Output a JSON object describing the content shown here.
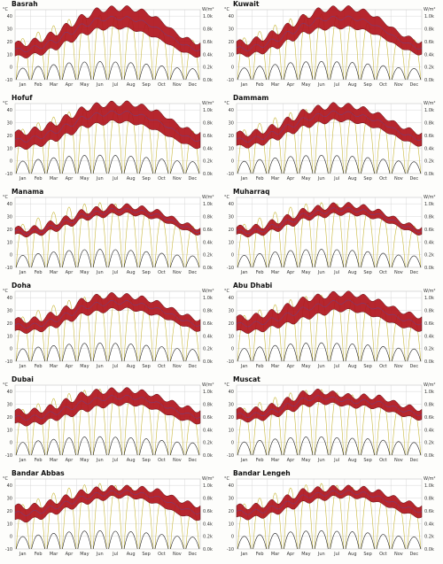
{
  "chart_data": {
    "type": "area",
    "months": [
      "Jan",
      "Feb",
      "Mar",
      "Apr",
      "May",
      "Jun",
      "Jul",
      "Aug",
      "Sep",
      "Oct",
      "Nov",
      "Dec"
    ],
    "temp_axis": {
      "unit": "°C",
      "ylim": [
        -10,
        45
      ],
      "ticks": [
        -10,
        0,
        10,
        20,
        30,
        40
      ]
    },
    "solar_axis": {
      "unit": "W/m²",
      "ylim": [
        0,
        1100
      ],
      "ticks": [
        "0.0k",
        "0.2k",
        "0.4k",
        "0.6k",
        "0.8k",
        "1.0k"
      ]
    },
    "colors": {
      "temp_band": "#b0141c",
      "temp_edge": "#5a0a0e",
      "mean_line": "#4a4cb0",
      "solar": "#c8b83c",
      "solar_low": "#222222",
      "grid": "#d8d8d8"
    },
    "cities": [
      {
        "name": "Basrah",
        "tmin": [
          8,
          10,
          14,
          20,
          26,
          30,
          31,
          30,
          26,
          21,
          14,
          9
        ],
        "tmax": [
          18,
          21,
          26,
          33,
          40,
          45,
          46,
          46,
          43,
          36,
          26,
          20
        ],
        "solar_peak": [
          650,
          750,
          850,
          950,
          1000,
          1020,
          1000,
          960,
          880,
          780,
          670,
          620
        ]
      },
      {
        "name": "Kuwait",
        "tmin": [
          9,
          11,
          15,
          21,
          27,
          30,
          31,
          31,
          28,
          23,
          16,
          11
        ],
        "tmax": [
          19,
          22,
          27,
          33,
          40,
          45,
          46,
          46,
          43,
          36,
          27,
          21
        ],
        "solar_peak": [
          660,
          760,
          860,
          960,
          1010,
          1030,
          1010,
          970,
          890,
          790,
          680,
          630
        ]
      },
      {
        "name": "Hofuf",
        "tmin": [
          10,
          12,
          16,
          21,
          27,
          29,
          31,
          30,
          27,
          22,
          16,
          11
        ],
        "tmax": [
          22,
          25,
          29,
          35,
          41,
          44,
          45,
          45,
          42,
          37,
          29,
          23
        ],
        "solar_peak": [
          700,
          800,
          890,
          970,
          1020,
          1040,
          1020,
          980,
          910,
          820,
          720,
          670
        ]
      },
      {
        "name": "Dammam",
        "tmin": [
          11,
          13,
          17,
          22,
          27,
          30,
          32,
          31,
          28,
          24,
          18,
          13
        ],
        "tmax": [
          21,
          23,
          27,
          33,
          39,
          42,
          44,
          43,
          40,
          35,
          28,
          23
        ],
        "solar_peak": [
          690,
          790,
          880,
          960,
          1010,
          1030,
          1010,
          970,
          900,
          810,
          710,
          660
        ]
      },
      {
        "name": "Manama",
        "tmin": [
          15,
          16,
          19,
          23,
          28,
          30,
          32,
          32,
          30,
          27,
          22,
          17
        ],
        "tmax": [
          20,
          21,
          25,
          29,
          34,
          36,
          38,
          38,
          36,
          33,
          27,
          22
        ],
        "solar_peak": [
          680,
          780,
          870,
          950,
          1000,
          1020,
          1000,
          960,
          890,
          800,
          700,
          650
        ]
      },
      {
        "name": "Muharraq",
        "tmin": [
          15,
          16,
          19,
          23,
          28,
          30,
          32,
          32,
          30,
          27,
          22,
          17
        ],
        "tmax": [
          21,
          22,
          26,
          30,
          35,
          37,
          39,
          39,
          37,
          33,
          27,
          22
        ],
        "solar_peak": [
          680,
          780,
          870,
          950,
          1000,
          1020,
          1000,
          960,
          890,
          800,
          700,
          650
        ]
      },
      {
        "name": "Doha",
        "tmin": [
          13,
          14,
          17,
          22,
          27,
          29,
          31,
          31,
          28,
          25,
          20,
          15
        ],
        "tmax": [
          22,
          23,
          27,
          32,
          38,
          41,
          42,
          41,
          39,
          35,
          29,
          24
        ],
        "solar_peak": [
          700,
          800,
          880,
          960,
          1010,
          1030,
          1010,
          970,
          900,
          820,
          720,
          670
        ]
      },
      {
        "name": "Abu Dhabi",
        "tmin": [
          13,
          14,
          17,
          20,
          24,
          27,
          30,
          30,
          27,
          23,
          18,
          15
        ],
        "tmax": [
          24,
          26,
          29,
          34,
          39,
          41,
          43,
          43,
          40,
          36,
          30,
          26
        ],
        "solar_peak": [
          720,
          810,
          890,
          970,
          1020,
          1040,
          1010,
          980,
          920,
          830,
          740,
          690
        ]
      },
      {
        "name": "Dubai",
        "tmin": [
          14,
          15,
          18,
          21,
          25,
          28,
          30,
          30,
          28,
          24,
          19,
          16
        ],
        "tmax": [
          24,
          25,
          28,
          33,
          38,
          40,
          41,
          41,
          39,
          35,
          30,
          26
        ],
        "solar_peak": [
          720,
          810,
          890,
          970,
          1020,
          1040,
          1010,
          980,
          920,
          830,
          740,
          690
        ]
      },
      {
        "name": "Muscat",
        "tmin": [
          17,
          18,
          21,
          25,
          29,
          31,
          30,
          28,
          28,
          26,
          22,
          19
        ],
        "tmax": [
          25,
          26,
          29,
          34,
          39,
          40,
          38,
          36,
          36,
          35,
          30,
          27
        ],
        "solar_peak": [
          740,
          830,
          910,
          980,
          1020,
          1030,
          980,
          950,
          920,
          840,
          760,
          710
        ]
      },
      {
        "name": "Bandar Abbas",
        "tmin": [
          12,
          14,
          18,
          22,
          26,
          29,
          31,
          31,
          28,
          24,
          18,
          14
        ],
        "tmax": [
          23,
          24,
          27,
          31,
          35,
          37,
          38,
          38,
          37,
          35,
          29,
          25
        ],
        "solar_peak": [
          700,
          790,
          880,
          960,
          1010,
          1030,
          1000,
          970,
          910,
          820,
          720,
          670
        ]
      },
      {
        "name": "Bandar Lengeh",
        "tmin": [
          14,
          15,
          18,
          22,
          27,
          29,
          31,
          31,
          29,
          25,
          20,
          16
        ],
        "tmax": [
          23,
          24,
          27,
          31,
          36,
          37,
          38,
          38,
          37,
          34,
          29,
          25
        ],
        "solar_peak": [
          710,
          800,
          880,
          960,
          1010,
          1030,
          1000,
          970,
          910,
          820,
          730,
          680
        ]
      }
    ]
  }
}
